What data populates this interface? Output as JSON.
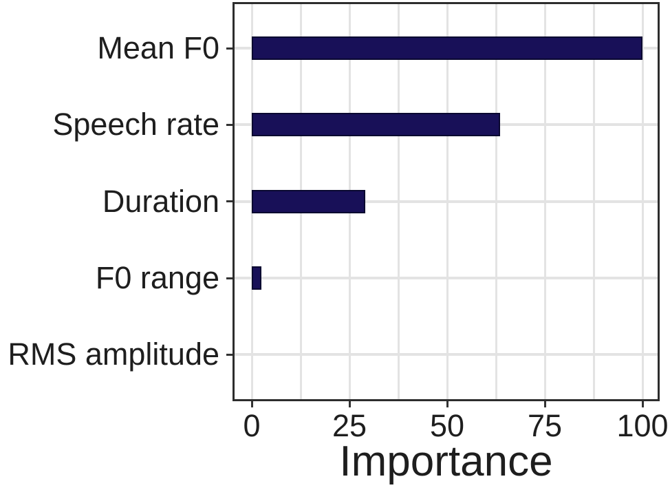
{
  "chart_data": {
    "type": "bar",
    "orientation": "horizontal",
    "title": "",
    "xlabel": "Importance",
    "ylabel": "",
    "categories": [
      "Mean F0",
      "Speech rate",
      "Duration",
      "F0 range",
      "RMS amplitude"
    ],
    "values": [
      100,
      63.5,
      29,
      2.5,
      0
    ],
    "xlim": [
      0,
      100
    ],
    "x_ticks": [
      0,
      25,
      50,
      75,
      100
    ],
    "grid": "on",
    "minor_grid_step": 12.5,
    "legend": "none",
    "colors": {
      "bar_fill": "#181058",
      "bar_outline": "#0a0830",
      "gridline": "#e3e3e3",
      "panel_border": "#2d2d2d",
      "tick": "#333333",
      "text": "#1e1e1e",
      "background": "#ffffff"
    }
  }
}
